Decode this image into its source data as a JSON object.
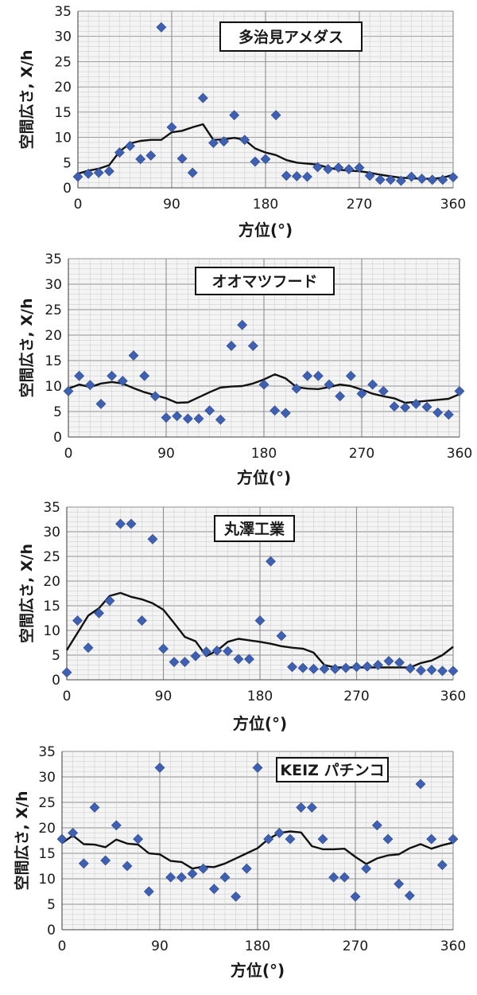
{
  "colors": {
    "marker": "#3f5fb0",
    "line": "#111111",
    "grid_minor": "#c8c8c8",
    "grid_major": "#8f8f8f",
    "plot_bg": "#f4f4f4"
  },
  "chart_data": [
    {
      "type": "scatter",
      "title": "多治見アメダス",
      "xlabel": "方位(°)",
      "ylabel": "空間広さ, X/h",
      "xlim": [
        0,
        360
      ],
      "ylim": [
        0,
        35
      ],
      "xticks": [
        "0",
        "90",
        "180",
        "270",
        "360"
      ],
      "yticks": [
        "0",
        "5",
        "10",
        "15",
        "20",
        "25",
        "30",
        "35"
      ],
      "grid": true,
      "points": [
        [
          0,
          2.2
        ],
        [
          10,
          2.8
        ],
        [
          20,
          3.0
        ],
        [
          30,
          3.3
        ],
        [
          40,
          7.0
        ],
        [
          50,
          8.3
        ],
        [
          60,
          5.7
        ],
        [
          70,
          6.4
        ],
        [
          80,
          31.8
        ],
        [
          90,
          12.0
        ],
        [
          100,
          5.8
        ],
        [
          110,
          3.0
        ],
        [
          120,
          17.8
        ],
        [
          130,
          8.9
        ],
        [
          140,
          9.2
        ],
        [
          150,
          14.4
        ],
        [
          160,
          9.5
        ],
        [
          170,
          5.2
        ],
        [
          180,
          5.7
        ],
        [
          190,
          14.4
        ],
        [
          200,
          2.4
        ],
        [
          210,
          2.3
        ],
        [
          220,
          2.2
        ],
        [
          230,
          4.1
        ],
        [
          240,
          3.7
        ],
        [
          250,
          4.0
        ],
        [
          260,
          3.7
        ],
        [
          270,
          4.0
        ],
        [
          280,
          2.4
        ],
        [
          290,
          1.6
        ],
        [
          300,
          1.6
        ],
        [
          310,
          1.4
        ],
        [
          320,
          2.2
        ],
        [
          330,
          1.8
        ],
        [
          340,
          1.6
        ],
        [
          350,
          1.6
        ],
        [
          360,
          2.1
        ]
      ],
      "line": [
        [
          0,
          2.8
        ],
        [
          10,
          3.4
        ],
        [
          20,
          3.8
        ],
        [
          30,
          4.5
        ],
        [
          40,
          7.2
        ],
        [
          50,
          8.8
        ],
        [
          60,
          9.3
        ],
        [
          70,
          9.5
        ],
        [
          80,
          9.5
        ],
        [
          90,
          11.0
        ],
        [
          100,
          11.3
        ],
        [
          110,
          12.0
        ],
        [
          120,
          12.6
        ],
        [
          130,
          9.5
        ],
        [
          140,
          9.6
        ],
        [
          150,
          9.9
        ],
        [
          160,
          9.5
        ],
        [
          170,
          7.8
        ],
        [
          180,
          7.0
        ],
        [
          190,
          6.5
        ],
        [
          200,
          5.5
        ],
        [
          210,
          5.0
        ],
        [
          220,
          4.8
        ],
        [
          230,
          4.6
        ],
        [
          240,
          4.0
        ],
        [
          250,
          3.6
        ],
        [
          260,
          3.4
        ],
        [
          270,
          3.3
        ],
        [
          280,
          3.0
        ],
        [
          290,
          2.6
        ],
        [
          300,
          2.3
        ],
        [
          310,
          2.0
        ],
        [
          320,
          1.9
        ],
        [
          330,
          1.8
        ],
        [
          340,
          1.8
        ],
        [
          350,
          2.0
        ],
        [
          360,
          2.6
        ]
      ]
    },
    {
      "type": "scatter",
      "title": "オオマツフード",
      "xlabel": "方位(°)",
      "ylabel": "空間広さ, X/h",
      "xlim": [
        0,
        360
      ],
      "ylim": [
        0,
        35
      ],
      "xticks": [
        "0",
        "90",
        "180",
        "270",
        "360"
      ],
      "yticks": [
        "0",
        "5",
        "10",
        "15",
        "20",
        "25",
        "30",
        "35"
      ],
      "grid": true,
      "points": [
        [
          0,
          9.0
        ],
        [
          10,
          12.0
        ],
        [
          20,
          10.2
        ],
        [
          30,
          6.5
        ],
        [
          40,
          12.0
        ],
        [
          50,
          11.0
        ],
        [
          60,
          16.0
        ],
        [
          70,
          12.0
        ],
        [
          80,
          8.0
        ],
        [
          90,
          3.8
        ],
        [
          100,
          4.1
        ],
        [
          110,
          3.6
        ],
        [
          120,
          3.6
        ],
        [
          130,
          5.2
        ],
        [
          140,
          3.4
        ],
        [
          150,
          17.9
        ],
        [
          160,
          22.0
        ],
        [
          170,
          17.9
        ],
        [
          180,
          10.3
        ],
        [
          190,
          5.2
        ],
        [
          200,
          4.7
        ],
        [
          210,
          9.5
        ],
        [
          220,
          12.0
        ],
        [
          230,
          12.0
        ],
        [
          240,
          10.3
        ],
        [
          250,
          8.0
        ],
        [
          260,
          12.0
        ],
        [
          270,
          8.5
        ],
        [
          280,
          10.3
        ],
        [
          290,
          9.0
        ],
        [
          300,
          6.0
        ],
        [
          310,
          5.8
        ],
        [
          320,
          6.5
        ],
        [
          330,
          5.9
        ],
        [
          340,
          4.8
        ],
        [
          350,
          4.4
        ],
        [
          360,
          9.0
        ]
      ],
      "line": [
        [
          0,
          9.5
        ],
        [
          10,
          10.3
        ],
        [
          20,
          9.8
        ],
        [
          30,
          10.5
        ],
        [
          40,
          10.8
        ],
        [
          50,
          10.5
        ],
        [
          60,
          9.6
        ],
        [
          70,
          8.8
        ],
        [
          80,
          8.2
        ],
        [
          90,
          7.6
        ],
        [
          100,
          6.7
        ],
        [
          110,
          6.8
        ],
        [
          120,
          7.8
        ],
        [
          130,
          8.8
        ],
        [
          140,
          9.7
        ],
        [
          150,
          9.9
        ],
        [
          160,
          10.0
        ],
        [
          170,
          10.5
        ],
        [
          180,
          11.3
        ],
        [
          190,
          12.3
        ],
        [
          200,
          11.5
        ],
        [
          210,
          9.8
        ],
        [
          220,
          9.5
        ],
        [
          230,
          9.4
        ],
        [
          240,
          9.8
        ],
        [
          250,
          10.3
        ],
        [
          260,
          10.0
        ],
        [
          270,
          9.3
        ],
        [
          280,
          8.5
        ],
        [
          290,
          8.0
        ],
        [
          300,
          7.6
        ],
        [
          310,
          6.7
        ],
        [
          320,
          6.9
        ],
        [
          330,
          7.1
        ],
        [
          340,
          7.3
        ],
        [
          350,
          7.5
        ],
        [
          360,
          8.4
        ]
      ]
    },
    {
      "type": "scatter",
      "title": "丸澤工業",
      "xlabel": "方位(°)",
      "ylabel": "空間広さ, X/h",
      "xlim": [
        0,
        360
      ],
      "ylim": [
        0,
        35
      ],
      "xticks": [
        "0",
        "90",
        "180",
        "270",
        "360"
      ],
      "yticks": [
        "0",
        "5",
        "10",
        "15",
        "20",
        "25",
        "30",
        "35"
      ],
      "grid": true,
      "points": [
        [
          0,
          1.5
        ],
        [
          10,
          12.0
        ],
        [
          20,
          6.5
        ],
        [
          30,
          13.5
        ],
        [
          40,
          16.0
        ],
        [
          50,
          31.6
        ],
        [
          60,
          31.6
        ],
        [
          70,
          12.0
        ],
        [
          80,
          28.5
        ],
        [
          90,
          6.3
        ],
        [
          100,
          3.6
        ],
        [
          110,
          3.6
        ],
        [
          120,
          4.8
        ],
        [
          130,
          5.7
        ],
        [
          140,
          5.9
        ],
        [
          150,
          5.8
        ],
        [
          160,
          4.2
        ],
        [
          170,
          4.2
        ],
        [
          180,
          12.0
        ],
        [
          190,
          24.0
        ],
        [
          200,
          8.9
        ],
        [
          210,
          2.6
        ],
        [
          220,
          2.4
        ],
        [
          230,
          2.2
        ],
        [
          240,
          2.2
        ],
        [
          250,
          2.2
        ],
        [
          260,
          2.4
        ],
        [
          270,
          2.6
        ],
        [
          280,
          2.7
        ],
        [
          290,
          3.0
        ],
        [
          300,
          3.8
        ],
        [
          310,
          3.5
        ],
        [
          320,
          2.3
        ],
        [
          330,
          1.9
        ],
        [
          340,
          2.0
        ],
        [
          350,
          1.8
        ],
        [
          360,
          1.8
        ]
      ],
      "line": [
        [
          0,
          6.0
        ],
        [
          10,
          9.5
        ],
        [
          20,
          13.0
        ],
        [
          30,
          14.5
        ],
        [
          40,
          17.0
        ],
        [
          50,
          17.6
        ],
        [
          60,
          16.8
        ],
        [
          70,
          16.3
        ],
        [
          80,
          15.5
        ],
        [
          90,
          14.2
        ],
        [
          100,
          11.5
        ],
        [
          110,
          8.7
        ],
        [
          120,
          7.8
        ],
        [
          130,
          4.8
        ],
        [
          140,
          5.9
        ],
        [
          150,
          7.7
        ],
        [
          160,
          8.3
        ],
        [
          170,
          8.0
        ],
        [
          180,
          7.7
        ],
        [
          190,
          7.3
        ],
        [
          200,
          6.8
        ],
        [
          210,
          6.5
        ],
        [
          220,
          6.3
        ],
        [
          230,
          5.5
        ],
        [
          240,
          3.0
        ],
        [
          250,
          2.5
        ],
        [
          260,
          2.5
        ],
        [
          270,
          2.5
        ],
        [
          280,
          2.5
        ],
        [
          290,
          2.5
        ],
        [
          300,
          2.5
        ],
        [
          310,
          2.5
        ],
        [
          320,
          2.5
        ],
        [
          330,
          3.4
        ],
        [
          340,
          3.9
        ],
        [
          350,
          5.0
        ],
        [
          360,
          6.7
        ]
      ]
    },
    {
      "type": "scatter",
      "title": "KEIZ パチンコ",
      "xlabel": "方位(°)",
      "ylabel": "空間広さ, X/h",
      "xlim": [
        0,
        360
      ],
      "ylim": [
        0,
        35
      ],
      "xticks": [
        "0",
        "90",
        "180",
        "270",
        "360"
      ],
      "yticks": [
        "0",
        "5",
        "10",
        "15",
        "20",
        "25",
        "30",
        "35"
      ],
      "grid": true,
      "points": [
        [
          0,
          17.8
        ],
        [
          10,
          19.0
        ],
        [
          20,
          13.0
        ],
        [
          30,
          24.0
        ],
        [
          40,
          13.6
        ],
        [
          50,
          20.5
        ],
        [
          60,
          12.5
        ],
        [
          70,
          17.8
        ],
        [
          80,
          7.5
        ],
        [
          90,
          31.8
        ],
        [
          100,
          10.3
        ],
        [
          110,
          10.3
        ],
        [
          120,
          11.0
        ],
        [
          130,
          12.0
        ],
        [
          140,
          8.0
        ],
        [
          150,
          10.3
        ],
        [
          160,
          6.5
        ],
        [
          170,
          12.0
        ],
        [
          180,
          31.8
        ],
        [
          190,
          17.8
        ],
        [
          200,
          19.0
        ],
        [
          210,
          17.8
        ],
        [
          220,
          24.0
        ],
        [
          230,
          24.0
        ],
        [
          240,
          17.8
        ],
        [
          250,
          10.3
        ],
        [
          260,
          10.3
        ],
        [
          270,
          6.5
        ],
        [
          280,
          12.0
        ],
        [
          290,
          20.5
        ],
        [
          300,
          17.8
        ],
        [
          310,
          9.0
        ],
        [
          320,
          6.7
        ],
        [
          330,
          28.6
        ],
        [
          340,
          17.8
        ],
        [
          350,
          12.7
        ],
        [
          360,
          17.8
        ]
      ],
      "line": [
        [
          0,
          17.0
        ],
        [
          10,
          18.5
        ],
        [
          20,
          16.8
        ],
        [
          30,
          16.7
        ],
        [
          40,
          16.2
        ],
        [
          50,
          17.7
        ],
        [
          60,
          16.9
        ],
        [
          70,
          16.7
        ],
        [
          80,
          15.0
        ],
        [
          90,
          14.8
        ],
        [
          100,
          13.5
        ],
        [
          110,
          13.3
        ],
        [
          120,
          12.0
        ],
        [
          130,
          12.4
        ],
        [
          140,
          12.3
        ],
        [
          150,
          13.0
        ],
        [
          160,
          14.0
        ],
        [
          170,
          15.0
        ],
        [
          180,
          16.0
        ],
        [
          190,
          17.8
        ],
        [
          200,
          19.0
        ],
        [
          210,
          19.3
        ],
        [
          220,
          19.1
        ],
        [
          230,
          16.4
        ],
        [
          240,
          15.8
        ],
        [
          250,
          15.8
        ],
        [
          260,
          15.9
        ],
        [
          270,
          14.3
        ],
        [
          280,
          12.9
        ],
        [
          290,
          14.0
        ],
        [
          300,
          14.6
        ],
        [
          310,
          14.8
        ],
        [
          320,
          16.0
        ],
        [
          330,
          16.8
        ],
        [
          340,
          15.9
        ],
        [
          350,
          16.6
        ],
        [
          360,
          17.1
        ]
      ]
    }
  ]
}
